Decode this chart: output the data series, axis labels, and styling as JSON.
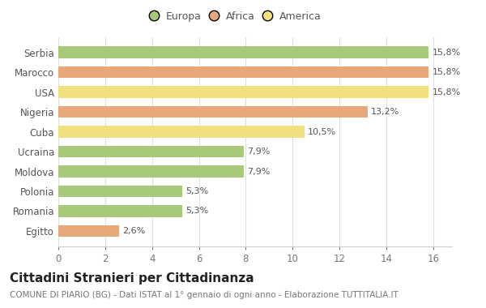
{
  "categories": [
    "Egitto",
    "Romania",
    "Polonia",
    "Moldova",
    "Ucraina",
    "Cuba",
    "Nigeria",
    "USA",
    "Marocco",
    "Serbia"
  ],
  "values": [
    2.6,
    5.3,
    5.3,
    7.9,
    7.9,
    10.5,
    13.2,
    15.8,
    15.8,
    15.8
  ],
  "labels": [
    "2,6%",
    "5,3%",
    "5,3%",
    "7,9%",
    "7,9%",
    "10,5%",
    "13,2%",
    "15,8%",
    "15,8%",
    "15,8%"
  ],
  "colors": [
    "#e8a87c",
    "#a8c87a",
    "#a8c87a",
    "#a8c87a",
    "#a8c87a",
    "#f0e080",
    "#e8a87c",
    "#f0e080",
    "#e8a87c",
    "#a8c87a"
  ],
  "legend": [
    {
      "label": "Europa",
      "color": "#a8c87a"
    },
    {
      "label": "Africa",
      "color": "#e8a87c"
    },
    {
      "label": "America",
      "color": "#f0e080"
    }
  ],
  "title": "Cittadini Stranieri per Cittadinanza",
  "subtitle": "COMUNE DI PIARIO (BG) - Dati ISTAT al 1° gennaio di ogni anno - Elaborazione TUTTITALIA.IT",
  "xlim": [
    0,
    16.8
  ],
  "xticks": [
    0,
    2,
    4,
    6,
    8,
    10,
    12,
    14,
    16
  ],
  "background_color": "#ffffff",
  "title_fontsize": 11,
  "subtitle_fontsize": 7.5,
  "label_fontsize": 8,
  "tick_fontsize": 8.5
}
